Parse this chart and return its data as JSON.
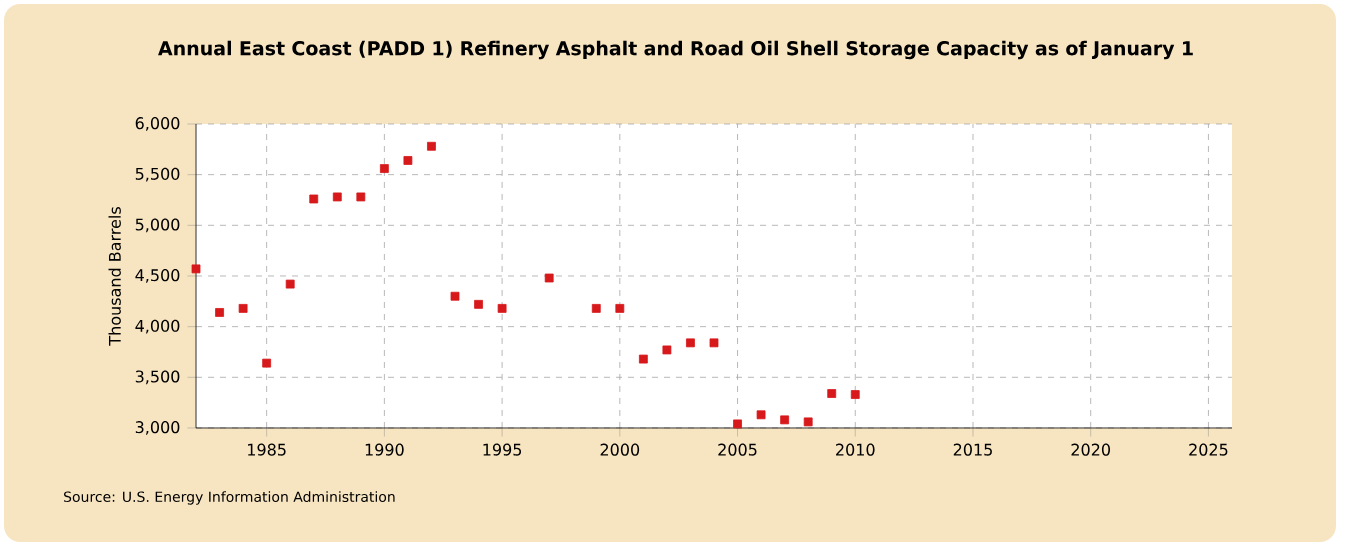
{
  "chart_data": {
    "type": "scatter",
    "title": "Annual East Coast (PADD 1) Refinery Asphalt and Road Oil Shell Storage Capacity as of January  1",
    "ylabel": "Thousand Barrels",
    "annotations": [
      "Source: U.S. Energy Information Administration"
    ],
    "x": [
      1982,
      1983,
      1984,
      1985,
      1986,
      1987,
      1988,
      1989,
      1990,
      1991,
      1992,
      1993,
      1994,
      1995,
      1997,
      1999,
      2000,
      2001,
      2002,
      2003,
      2004,
      2005,
      2006,
      2007,
      2008,
      2009,
      2010
    ],
    "series": [
      {
        "color": "#d7191c",
        "values": [
          4570,
          4140,
          4180,
          3640,
          4420,
          5260,
          5280,
          5280,
          5560,
          5640,
          5780,
          4300,
          4220,
          4180,
          4480,
          4180,
          4180,
          3680,
          3770,
          3840,
          3840,
          3040,
          3130,
          3080,
          3060,
          3340,
          3330
        ]
      }
    ],
    "xlim": [
      1982,
      2026
    ],
    "xticks": [
      1985,
      1990,
      1995,
      2000,
      2005,
      2010,
      2015,
      2020,
      2025
    ],
    "ylim": [
      3000,
      6000
    ],
    "yticks": [
      {
        "value": 3000,
        "label": "3,000"
      },
      {
        "value": 3500,
        "label": "3,500"
      },
      {
        "value": 4000,
        "label": "4,000"
      },
      {
        "value": 4500,
        "label": "4,500"
      },
      {
        "value": 5000,
        "label": "5,000"
      },
      {
        "value": 5500,
        "label": "5,500"
      },
      {
        "value": 6000,
        "label": "6,000"
      }
    ],
    "grid": true,
    "marker": "square"
  }
}
